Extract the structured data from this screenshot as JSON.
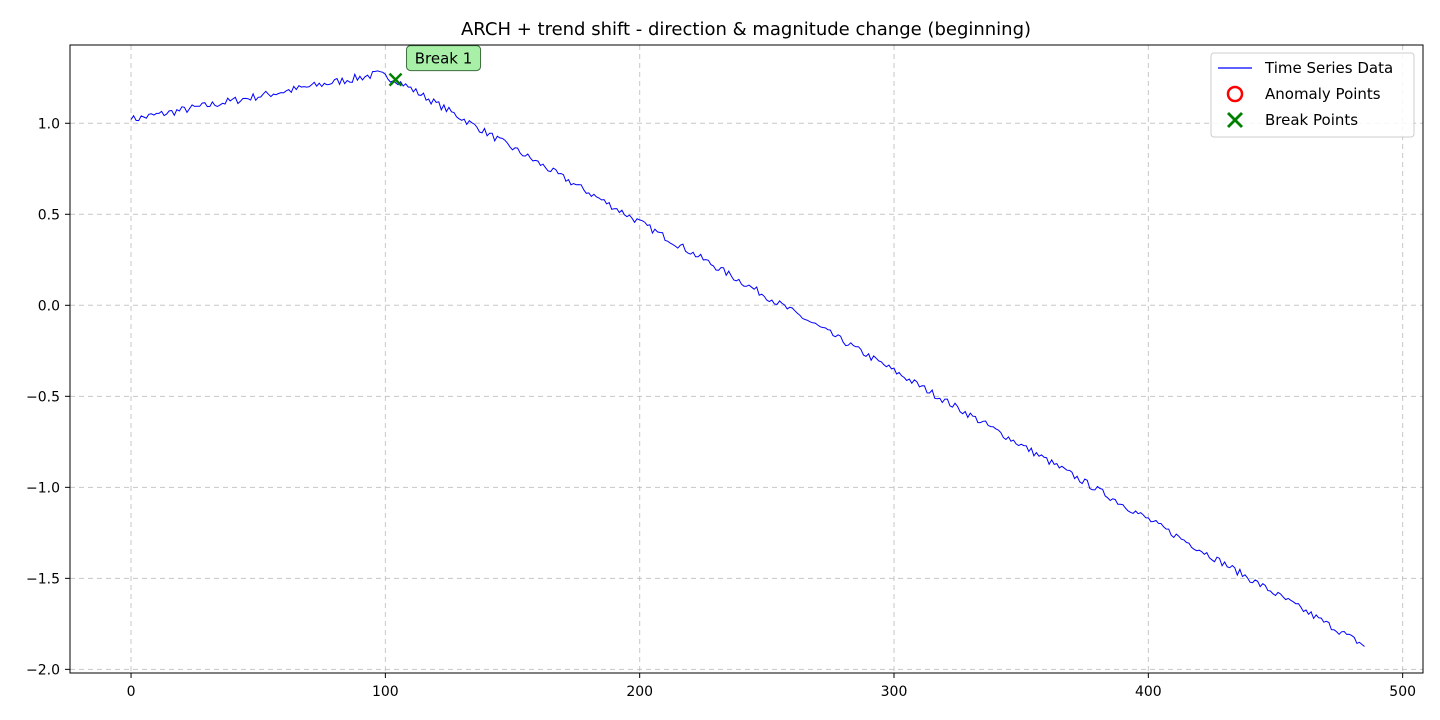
{
  "chart_data": {
    "type": "line",
    "title": "ARCH + trend shift - direction & magnitude change (beginning)",
    "xlabel": "",
    "ylabel": "",
    "xlim": [
      -24,
      508
    ],
    "ylim": [
      -2.02,
      1.43
    ],
    "x_ticks": [
      0,
      100,
      200,
      300,
      400,
      500
    ],
    "y_ticks": [
      -2.0,
      -1.5,
      -1.0,
      -0.5,
      0.0,
      0.5,
      1.0
    ],
    "x_tick_labels": [
      "0",
      "100",
      "200",
      "300",
      "400",
      "500"
    ],
    "y_tick_labels": [
      "−2.0",
      "−1.5",
      "−1.0",
      "−0.5",
      "0.0",
      "0.5",
      "1.0"
    ],
    "grid": true,
    "legend_position": "top-right",
    "legend": [
      {
        "label": "Time Series Data",
        "marker": "line",
        "color": "#0000ff"
      },
      {
        "label": "Anomaly Points",
        "marker": "circle",
        "color": "#ff0000"
      },
      {
        "label": "Break Points",
        "marker": "x",
        "color": "#008000"
      }
    ],
    "series": [
      {
        "name": "Time Series Data",
        "color": "#0000ff",
        "n_points": 486,
        "segments": [
          {
            "x_start": 0,
            "x_end": 97,
            "y_start": 1.02,
            "y_end": 1.27
          },
          {
            "x_start": 97,
            "x_end": 104,
            "y_start": 1.27,
            "y_end": 1.24
          },
          {
            "x_start": 104,
            "x_end": 485,
            "y_start": 1.24,
            "y_end": -1.87
          }
        ]
      }
    ],
    "anomaly_points": [],
    "break_points": [
      {
        "x": 104,
        "y": 1.24,
        "label": "Break 1"
      }
    ]
  }
}
